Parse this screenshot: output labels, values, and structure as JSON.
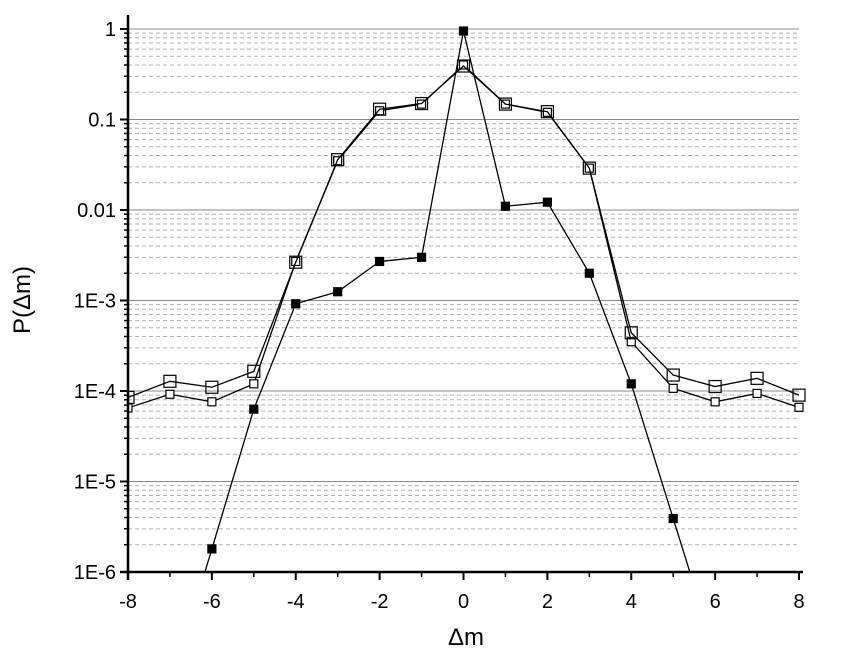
{
  "chart_data": {
    "type": "line",
    "title": "",
    "xlabel": "Δm",
    "ylabel": "P(Δm)",
    "x_scale": "linear",
    "y_scale": "log",
    "xlim": [
      -8,
      8
    ],
    "ylim": [
      1e-06,
      1
    ],
    "x_ticks": [
      -8,
      -6,
      -4,
      -2,
      0,
      2,
      4,
      6,
      8
    ],
    "x_tick_labels": [
      "-8",
      "-6",
      "-4",
      "-2",
      "0",
      "2",
      "4",
      "6",
      "8"
    ],
    "y_ticks": [
      1e-06,
      1e-05,
      0.0001,
      0.001,
      0.01,
      0.1,
      1
    ],
    "y_tick_labels": [
      "1E-6",
      "1E-5",
      "1E-4",
      "1E-3",
      "0.01",
      "0.1",
      "1"
    ],
    "grid": true,
    "legend": "none",
    "series": [
      {
        "marker": "filled-square",
        "color": "#000000",
        "x": [
          -6,
          -5,
          -4,
          -3,
          -2,
          -1,
          0,
          1,
          2,
          3,
          4,
          5
        ],
        "y": [
          1.8e-06,
          6.3e-05,
          0.00092,
          0.00125,
          0.0027,
          0.003,
          0.95,
          0.011,
          0.0122,
          0.002,
          0.00012,
          3.9e-06
        ]
      },
      {
        "marker": "small-open-square",
        "color": "#000000",
        "x": [
          -8,
          -7,
          -6,
          -5,
          -4,
          -3,
          -2,
          -1,
          0,
          1,
          2,
          3,
          4,
          5,
          6,
          7,
          8
        ],
        "y": [
          6.5e-05,
          9.2e-05,
          7.6e-05,
          0.00012,
          0.0027,
          0.035,
          0.125,
          0.148,
          0.4,
          0.148,
          0.12,
          0.029,
          0.00035,
          0.000107,
          7.6e-05,
          9.4e-05,
          6.6e-05
        ]
      },
      {
        "marker": "large-open-square",
        "color": "#000000",
        "x": [
          -8,
          -7,
          -6,
          -5,
          -4,
          -3,
          -2,
          -1,
          0,
          1,
          2,
          3,
          4,
          5,
          6,
          7,
          8
        ],
        "y": [
          8.5e-05,
          0.000128,
          0.00011,
          0.000165,
          0.00265,
          0.036,
          0.13,
          0.15,
          0.39,
          0.148,
          0.122,
          0.029,
          0.00044,
          0.00015,
          0.000112,
          0.000138,
          9e-05
        ]
      }
    ]
  }
}
